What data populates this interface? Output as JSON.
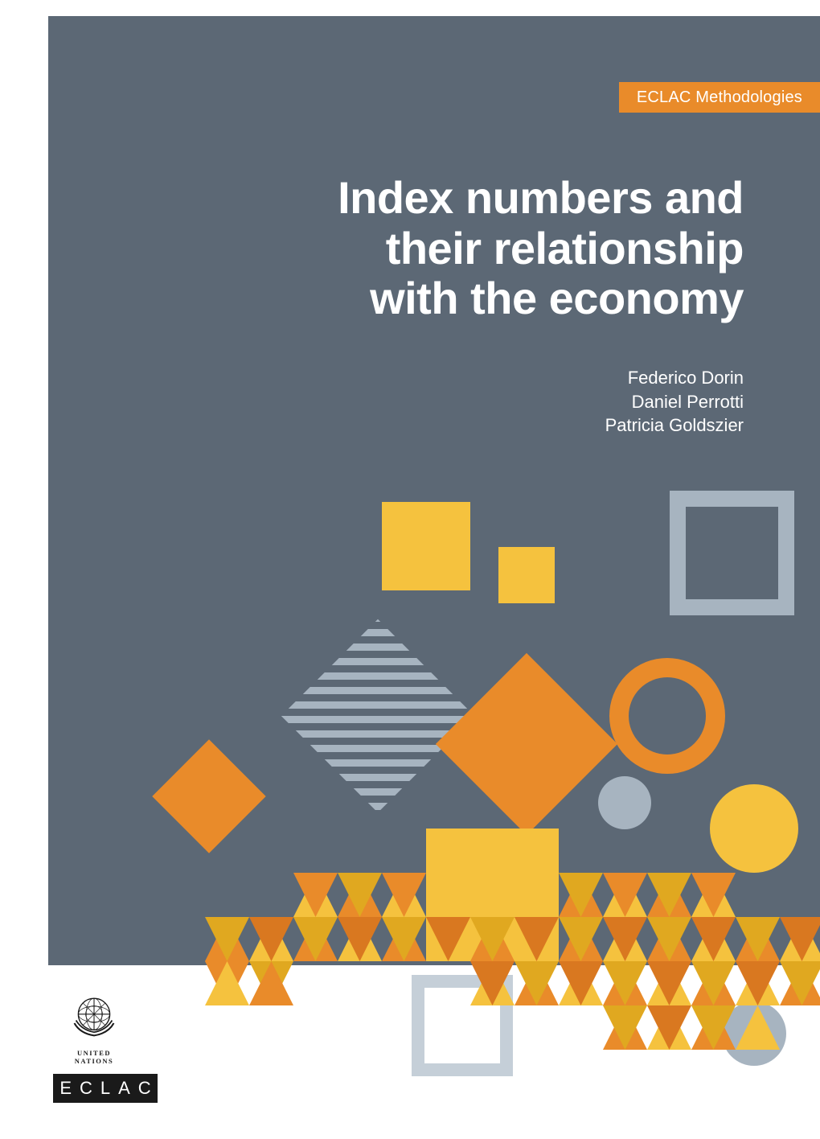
{
  "colors": {
    "panel_bg": "#5c6875",
    "accent_orange": "#e98b2a",
    "accent_orange_dark": "#d97820",
    "accent_yellow": "#f5c23e",
    "accent_yellow_dark": "#e0a820",
    "light_blue": "#a7b4c0",
    "lighter_blue": "#c5cfd8",
    "white": "#ffffff",
    "logo_black": "#1a1a1a"
  },
  "series_tag": "ECLAC Methodologies",
  "title_lines": [
    "Index numbers and",
    "their relationship",
    "with the economy"
  ],
  "authors": [
    "Federico Dorin",
    "Daniel Perrotti",
    "Patricia Goldszier"
  ],
  "footer": {
    "un_label": "UNITED NATIONS",
    "eclac_label": "ECLAC"
  }
}
